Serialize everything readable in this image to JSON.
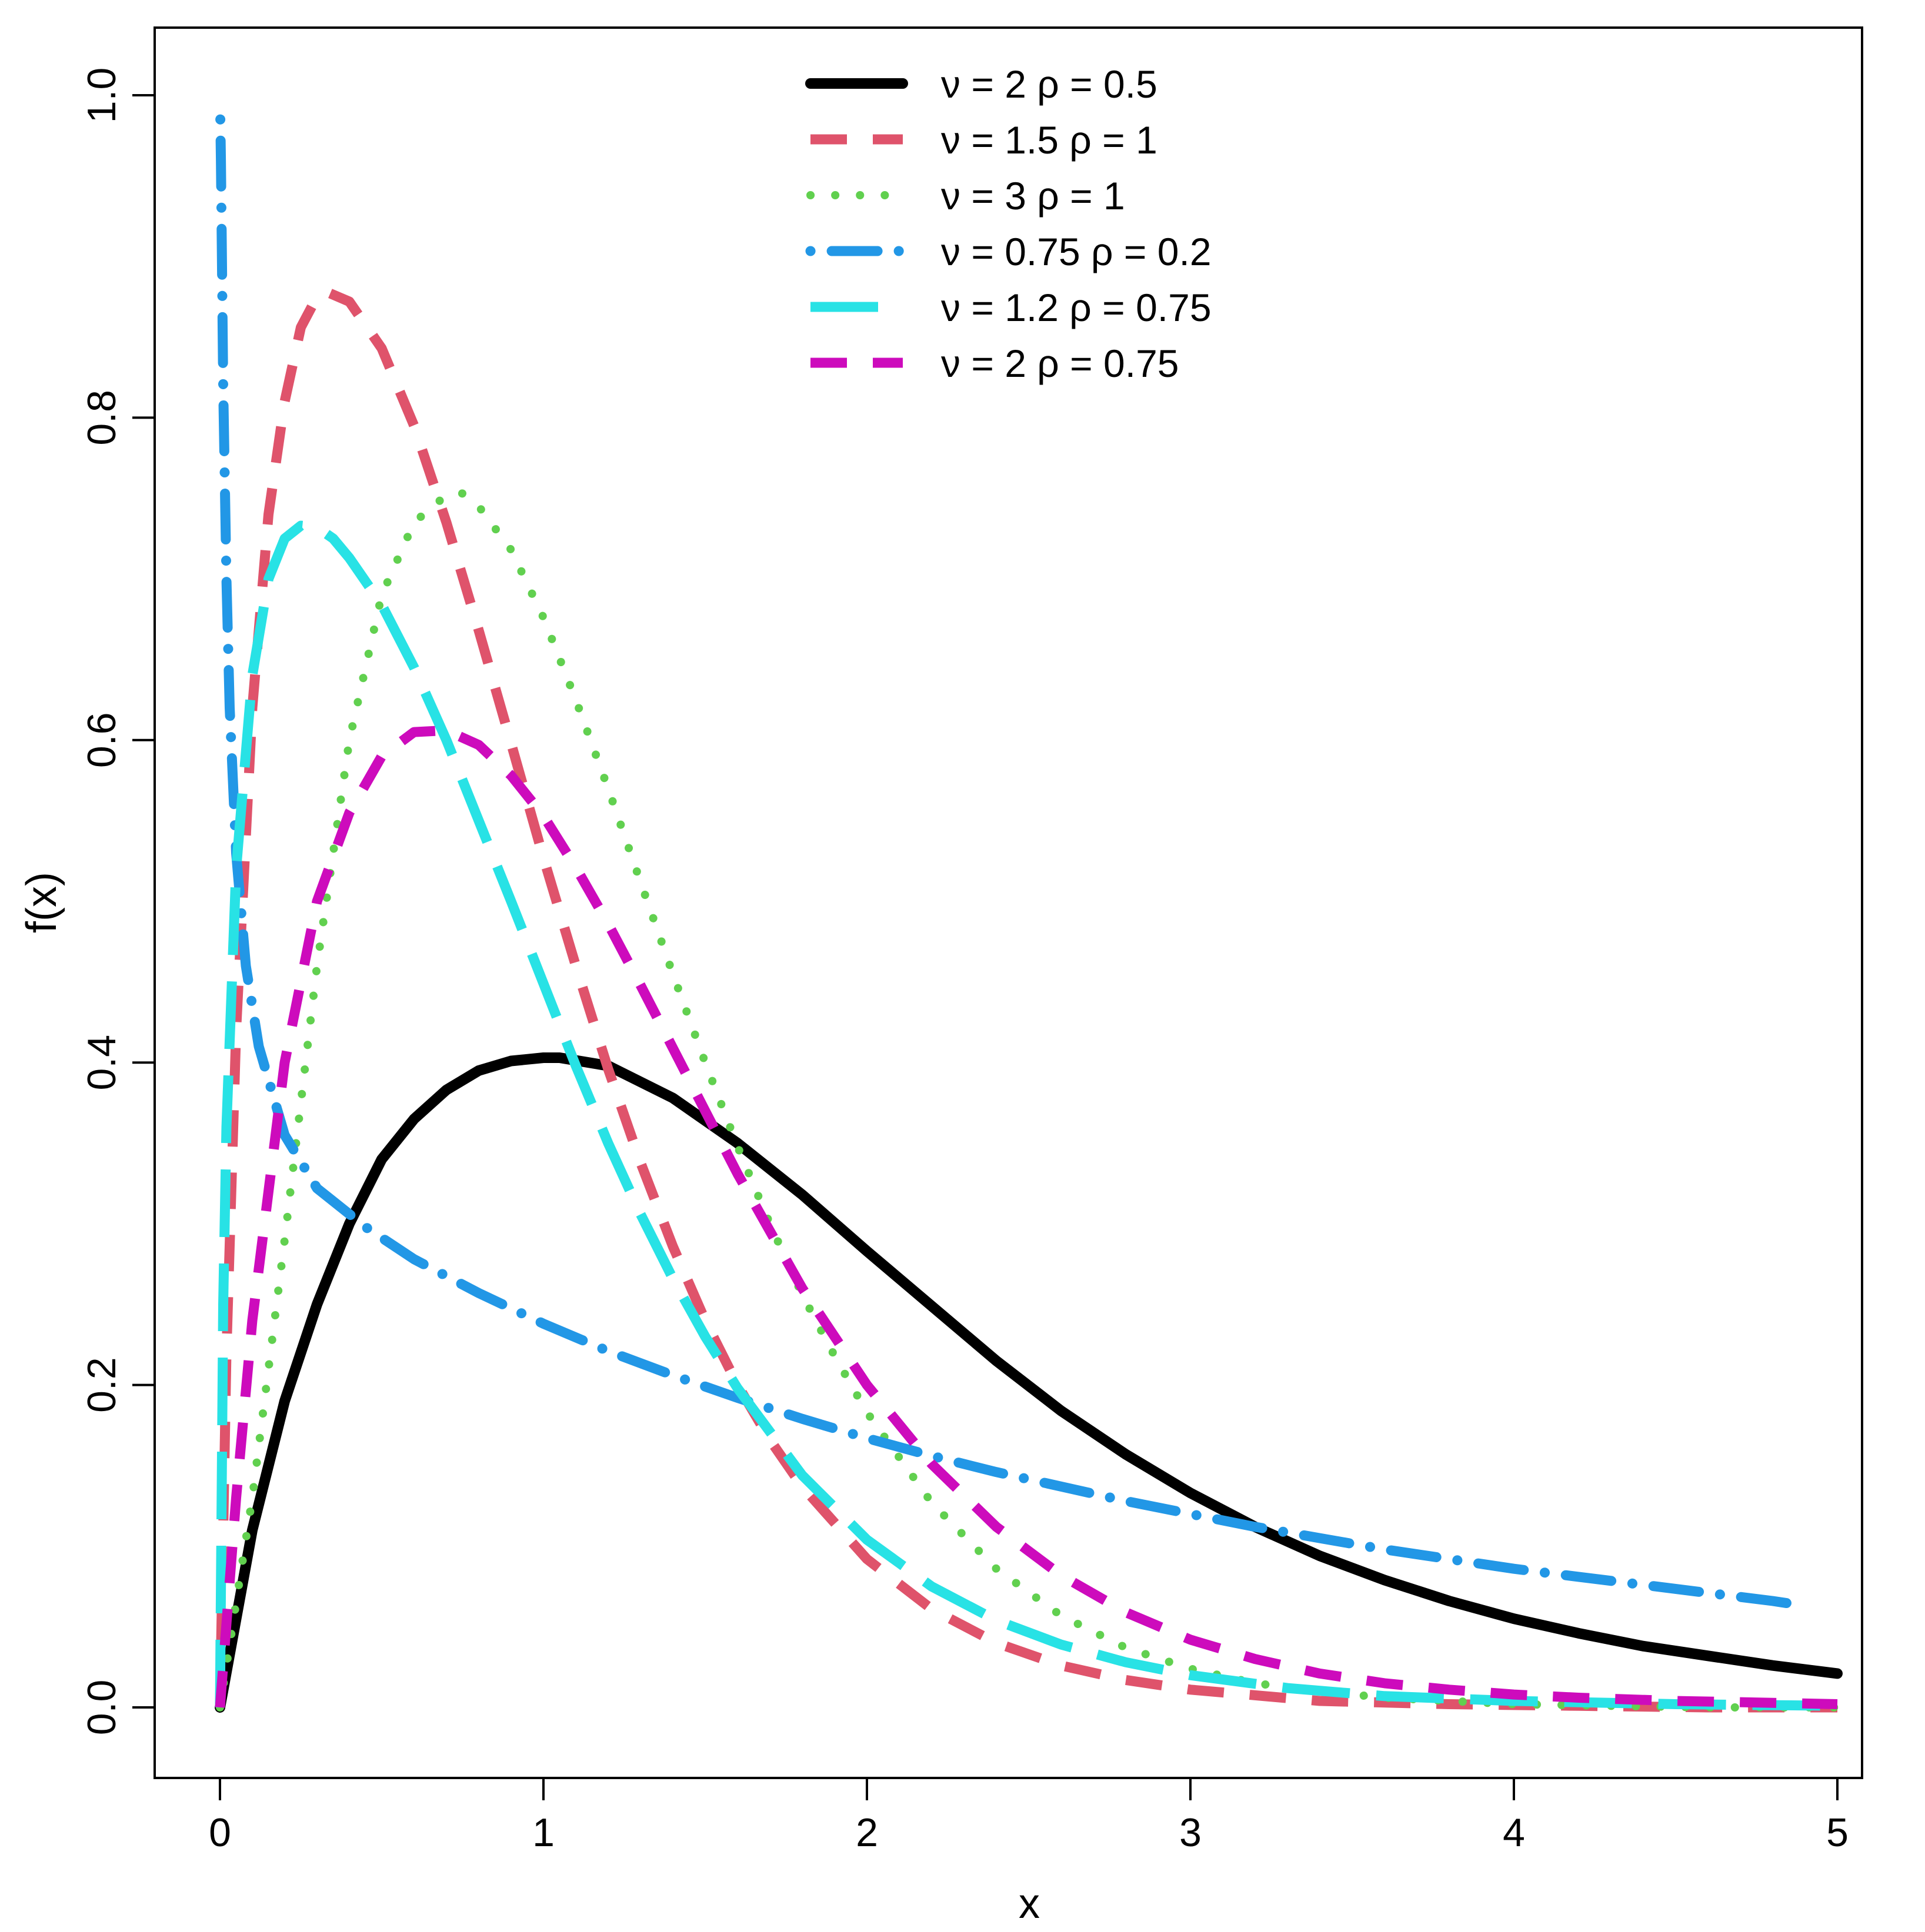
{
  "chart_data": {
    "type": "line",
    "title": "",
    "xlabel": "x",
    "ylabel": "f(x)",
    "xlim": [
      -0.2,
      5.2
    ],
    "ylim": [
      -0.04,
      1.04
    ],
    "xticks": [
      0,
      1,
      2,
      3,
      4,
      5
    ],
    "yticks": [
      0.0,
      0.2,
      0.4,
      0.6,
      0.8,
      1.0
    ],
    "xtick_labels": [
      "0",
      "1",
      "2",
      "3",
      "4",
      "5"
    ],
    "ytick_labels": [
      "0.0",
      "0.2",
      "0.4",
      "0.6",
      "0.8",
      "1.0"
    ],
    "grid": false,
    "legend_position": "top",
    "series": [
      {
        "name": "ν = 2  ρ = 0.5",
        "color": "#000000",
        "line_style": "solid",
        "x": [
          0,
          0.1,
          0.2,
          0.3,
          0.4,
          0.5,
          0.6,
          0.7,
          0.8,
          0.9,
          1.0,
          1.05,
          1.2,
          1.4,
          1.6,
          1.8,
          2.0,
          2.2,
          2.4,
          2.6,
          2.8,
          3.0,
          3.2,
          3.4,
          3.6,
          3.8,
          4.0,
          4.2,
          4.4,
          4.6,
          4.8,
          5.0
        ],
        "y": [
          0,
          0.11,
          0.19,
          0.25,
          0.3,
          0.34,
          0.365,
          0.383,
          0.395,
          0.401,
          0.403,
          0.403,
          0.398,
          0.378,
          0.35,
          0.318,
          0.283,
          0.249,
          0.215,
          0.184,
          0.157,
          0.133,
          0.112,
          0.094,
          0.079,
          0.066,
          0.055,
          0.046,
          0.038,
          0.032,
          0.026,
          0.021
        ]
      },
      {
        "name": "ν = 1.5  ρ = 1",
        "color": "#df536b",
        "line_style": "dashed",
        "x": [
          0,
          0.02,
          0.05,
          0.1,
          0.15,
          0.2,
          0.25,
          0.3,
          0.33,
          0.4,
          0.5,
          0.6,
          0.7,
          0.8,
          0.9,
          1.0,
          1.1,
          1.2,
          1.3,
          1.4,
          1.5,
          1.6,
          1.7,
          1.8,
          2.0,
          2.2,
          2.4,
          2.6,
          2.8,
          3.0,
          3.4,
          3.8,
          4.2,
          4.6,
          5.0
        ],
        "y": [
          0,
          0.22,
          0.42,
          0.62,
          0.74,
          0.81,
          0.856,
          0.875,
          0.878,
          0.872,
          0.843,
          0.795,
          0.735,
          0.668,
          0.598,
          0.527,
          0.46,
          0.396,
          0.338,
          0.286,
          0.24,
          0.2,
          0.166,
          0.137,
          0.092,
          0.061,
          0.04,
          0.026,
          0.017,
          0.011,
          0.004,
          0.002,
          0.001,
          0.0,
          0.0
        ]
      },
      {
        "name": "ν = 3  ρ = 1",
        "color": "#61d04f",
        "line_style": "dotted",
        "x": [
          0,
          0.1,
          0.2,
          0.3,
          0.4,
          0.5,
          0.6,
          0.7,
          0.75,
          0.8,
          0.9,
          1.0,
          1.1,
          1.2,
          1.3,
          1.4,
          1.5,
          1.6,
          1.7,
          1.8,
          1.9,
          2.0,
          2.2,
          2.4,
          2.6,
          2.8,
          3.0,
          3.2,
          3.4,
          3.6,
          3.8,
          4.0,
          4.3,
          4.6,
          5.0
        ],
        "y": [
          0,
          0.13,
          0.29,
          0.46,
          0.6,
          0.69,
          0.735,
          0.752,
          0.753,
          0.745,
          0.718,
          0.676,
          0.625,
          0.57,
          0.512,
          0.455,
          0.4,
          0.348,
          0.3,
          0.256,
          0.218,
          0.183,
          0.127,
          0.086,
          0.057,
          0.037,
          0.024,
          0.015,
          0.01,
          0.006,
          0.004,
          0.002,
          0.001,
          0.0,
          0.0
        ]
      },
      {
        "name": "ν = 0.75  ρ = 0.2",
        "color": "#2297e6",
        "line_style": "dotdash",
        "x": [
          0.001,
          0.003,
          0.006,
          0.01,
          0.02,
          0.03,
          0.05,
          0.08,
          0.12,
          0.2,
          0.3,
          0.45,
          0.6,
          0.8,
          1.0,
          1.2,
          1.4,
          1.6,
          1.8,
          2.0,
          2.2,
          2.4,
          2.6,
          2.8,
          3.0,
          3.2,
          3.4,
          3.6,
          3.8,
          4.0,
          4.2,
          4.4,
          4.6,
          4.8,
          4.9
        ],
        "y": [
          0.985,
          0.96,
          0.9,
          0.82,
          0.7,
          0.62,
          0.53,
          0.46,
          0.41,
          0.355,
          0.322,
          0.298,
          0.278,
          0.257,
          0.238,
          0.221,
          0.206,
          0.192,
          0.179,
          0.167,
          0.156,
          0.146,
          0.137,
          0.128,
          0.12,
          0.112,
          0.105,
          0.098,
          0.092,
          0.086,
          0.081,
          0.076,
          0.071,
          0.066,
          0.063
        ]
      },
      {
        "name": "ν = 1.2  ρ = 0.75",
        "color": "#28e2e5",
        "line_style": "longdash",
        "x": [
          0,
          0.01,
          0.02,
          0.05,
          0.1,
          0.15,
          0.2,
          0.25,
          0.3,
          0.35,
          0.4,
          0.5,
          0.6,
          0.7,
          0.8,
          0.9,
          1.0,
          1.1,
          1.2,
          1.3,
          1.4,
          1.5,
          1.6,
          1.8,
          2.0,
          2.2,
          2.4,
          2.6,
          2.8,
          3.0,
          3.3,
          3.6,
          4.0,
          4.5,
          5.0
        ],
        "y": [
          0,
          0.25,
          0.36,
          0.52,
          0.64,
          0.7,
          0.725,
          0.733,
          0.732,
          0.725,
          0.713,
          0.684,
          0.645,
          0.6,
          0.55,
          0.5,
          0.449,
          0.398,
          0.35,
          0.306,
          0.266,
          0.23,
          0.198,
          0.144,
          0.104,
          0.075,
          0.054,
          0.039,
          0.028,
          0.02,
          0.012,
          0.007,
          0.004,
          0.002,
          0.001
        ]
      },
      {
        "name": "ν = 2  ρ = 0.75",
        "color": "#cd0bbc",
        "line_style": "dashed",
        "x": [
          0,
          0.05,
          0.1,
          0.2,
          0.3,
          0.4,
          0.5,
          0.6,
          0.7,
          0.8,
          0.9,
          1.0,
          1.1,
          1.2,
          1.3,
          1.4,
          1.5,
          1.6,
          1.8,
          2.0,
          2.2,
          2.4,
          2.6,
          2.8,
          3.0,
          3.2,
          3.4,
          3.6,
          3.8,
          4.0,
          4.2,
          4.5,
          5.0
        ],
        "y": [
          0,
          0.13,
          0.24,
          0.4,
          0.5,
          0.555,
          0.59,
          0.605,
          0.606,
          0.597,
          0.578,
          0.553,
          0.521,
          0.486,
          0.448,
          0.409,
          0.37,
          0.331,
          0.26,
          0.2,
          0.151,
          0.112,
          0.082,
          0.059,
          0.042,
          0.03,
          0.021,
          0.015,
          0.011,
          0.008,
          0.006,
          0.004,
          0.002
        ]
      }
    ]
  }
}
